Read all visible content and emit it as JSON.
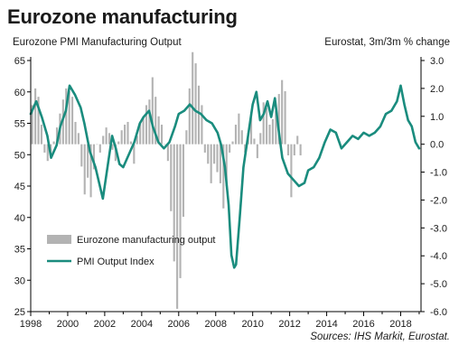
{
  "title": "Eurozone manufacturing",
  "left_axis_label": "Eurozone PMI Manufacturing Output",
  "right_axis_label": "Eurostat, 3m/3m % change",
  "source": "Sources: IHS Markit, Eurostat.",
  "colors": {
    "pmi_line": "#1a8c7e",
    "bars": "#b3b3b3"
  },
  "chart_data": {
    "type": "bar+line",
    "grid": false,
    "legend_position": "lower-left",
    "x_ticks": [
      "1998",
      "2000",
      "2002",
      "2004",
      "2006",
      "2008",
      "2010",
      "2012",
      "2014",
      "2016",
      "2018"
    ],
    "x_range": [
      1998.0,
      2019.1
    ],
    "y_left": {
      "range": [
        25,
        65
      ],
      "ticks": [
        "25",
        "30",
        "35",
        "40",
        "45",
        "50",
        "55",
        "60",
        "65"
      ]
    },
    "y_right": {
      "range": [
        -6.0,
        3.0
      ],
      "ticks": [
        "-6.0",
        "-5.0",
        "-4.0",
        "-3.0",
        "-2.0",
        "-1.0",
        "0.0",
        "1.0",
        "2.0",
        "3.0"
      ]
    },
    "series": [
      {
        "name": "Eurozone manufacturing output",
        "type": "bar",
        "axis": "right",
        "x_start": 1998.0,
        "step_years": 0.1667,
        "values": [
          1.4,
          2.0,
          1.7,
          0.7,
          -0.3,
          -0.6,
          -0.4,
          0.1,
          0.6,
          1.1,
          1.6,
          2.0,
          1.9,
          1.7,
          0.8,
          0.4,
          -0.8,
          -1.8,
          -1.2,
          -1.9,
          -0.9,
          0.0,
          -0.3,
          0.3,
          0.6,
          0.4,
          -0.2,
          -0.6,
          0.1,
          0.5,
          0.7,
          0.8,
          0.1,
          -0.7,
          0.3,
          0.8,
          1.0,
          1.4,
          1.6,
          2.4,
          1.7,
          1.0,
          0.7,
          0.0,
          -0.6,
          -2.4,
          -4.2,
          -5.9,
          -4.8,
          -2.6,
          0.5,
          2.0,
          3.3,
          2.9,
          2.1,
          1.4,
          -0.3,
          -0.7,
          -1.4,
          -0.7,
          -1.0,
          -1.4,
          -2.3,
          -1.5,
          -0.3,
          0.1,
          0.7,
          1.1,
          0.5,
          -0.3,
          0.4,
          1.1,
          0.2,
          -0.5,
          0.4,
          1.5,
          1.3,
          0.7,
          0.9,
          1.2,
          1.8,
          2.3,
          1.9,
          -0.4,
          -1.9,
          -0.4,
          0.3,
          -0.4
        ]
      },
      {
        "name": "PMI Output Index",
        "type": "line",
        "axis": "left",
        "x": [
          1998.0,
          1998.3,
          1998.6,
          1998.9,
          1999.1,
          1999.4,
          1999.6,
          1999.9,
          2000.1,
          2000.4,
          2000.7,
          2000.9,
          2001.2,
          2001.5,
          2001.7,
          2001.9,
          2002.2,
          2002.4,
          2002.6,
          2002.8,
          2003.0,
          2003.3,
          2003.6,
          2003.9,
          2004.1,
          2004.4,
          2004.6,
          2004.9,
          2005.2,
          2005.5,
          2005.8,
          2006.0,
          2006.3,
          2006.6,
          2006.9,
          2007.2,
          2007.5,
          2007.8,
          2008.1,
          2008.3,
          2008.5,
          2008.7,
          2008.85,
          2009.0,
          2009.1,
          2009.3,
          2009.5,
          2009.8,
          2010.0,
          2010.2,
          2010.4,
          2010.6,
          2010.8,
          2011.0,
          2011.2,
          2011.4,
          2011.6,
          2011.9,
          2012.2,
          2012.5,
          2012.8,
          2013.0,
          2013.3,
          2013.6,
          2013.9,
          2014.2,
          2014.5,
          2014.8,
          2015.1,
          2015.4,
          2015.7,
          2016.0,
          2016.3,
          2016.6,
          2016.9,
          2017.2,
          2017.5,
          2017.8,
          2018.0,
          2018.2,
          2018.4,
          2018.6,
          2018.8,
          2019.0
        ],
        "values": [
          56.5,
          58.5,
          56.0,
          53.0,
          49.5,
          51.5,
          54.5,
          57.0,
          61.0,
          59.5,
          57.5,
          55.0,
          50.5,
          48.0,
          45.5,
          43.0,
          49.0,
          53.0,
          51.0,
          48.5,
          48.0,
          50.0,
          52.0,
          55.0,
          56.0,
          57.0,
          54.5,
          52.0,
          51.0,
          52.0,
          54.5,
          56.5,
          57.0,
          58.0,
          57.0,
          56.5,
          55.5,
          55.0,
          53.5,
          51.5,
          48.0,
          42.0,
          34.0,
          32.0,
          32.5,
          40.0,
          48.0,
          54.0,
          58.0,
          60.0,
          55.5,
          56.5,
          58.5,
          56.0,
          59.0,
          54.0,
          49.5,
          47.0,
          46.0,
          45.0,
          45.5,
          47.5,
          48.0,
          49.5,
          52.0,
          54.0,
          53.5,
          51.0,
          52.0,
          53.0,
          52.5,
          53.5,
          53.0,
          53.5,
          54.5,
          56.5,
          57.0,
          58.5,
          61.0,
          58.0,
          55.5,
          54.5,
          52.0,
          51.0
        ]
      }
    ]
  }
}
